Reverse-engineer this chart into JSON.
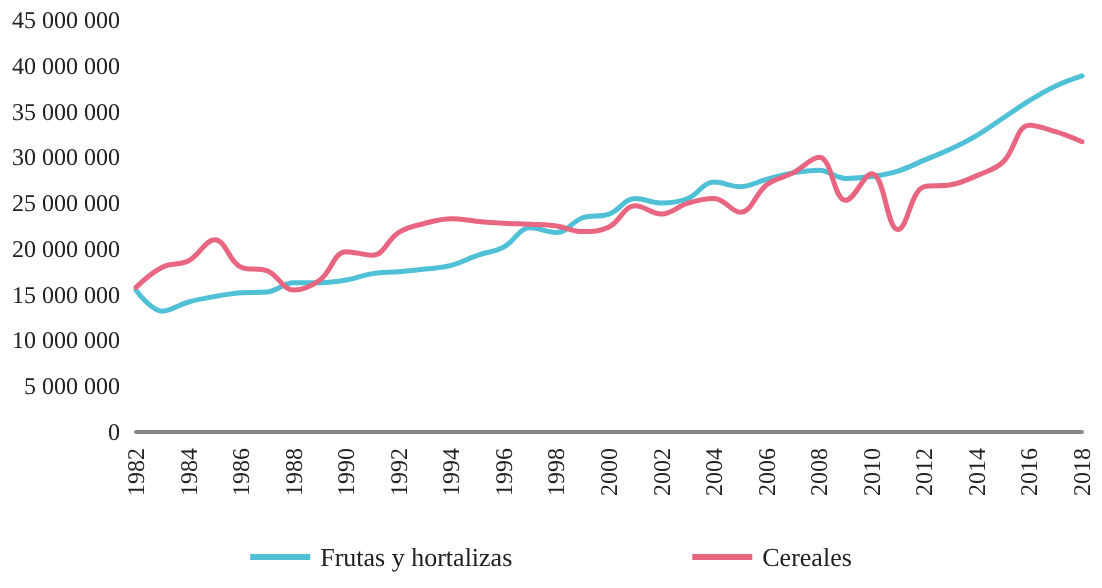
{
  "chart_data": {
    "type": "line",
    "x": [
      1982,
      1983,
      1984,
      1985,
      1986,
      1987,
      1988,
      1989,
      1990,
      1991,
      1992,
      1993,
      1994,
      1995,
      1996,
      1997,
      1998,
      1999,
      2000,
      2001,
      2002,
      2003,
      2004,
      2005,
      2006,
      2007,
      2008,
      2009,
      2010,
      2011,
      2012,
      2013,
      2014,
      2015,
      2016,
      2017,
      2018
    ],
    "series": [
      {
        "name": "Frutas y hortalizas",
        "color": "#4fc0d6",
        "values": [
          15500000,
          13200000,
          14200000,
          14800000,
          15200000,
          15300000,
          16300000,
          16300000,
          16600000,
          17300000,
          17500000,
          17800000,
          18200000,
          19300000,
          20200000,
          22300000,
          21800000,
          23400000,
          23800000,
          25500000,
          25000000,
          25500000,
          27300000,
          26800000,
          27600000,
          28300000,
          28600000,
          27700000,
          27900000,
          28500000,
          29700000,
          30900000,
          32400000,
          34300000,
          36200000,
          37800000,
          38900000
        ]
      },
      {
        "name": "Cereales",
        "color": "#e8667f",
        "values": [
          15800000,
          18000000,
          18700000,
          21000000,
          18000000,
          17600000,
          15500000,
          16600000,
          19700000,
          19300000,
          21800000,
          22800000,
          23300000,
          23000000,
          22800000,
          22700000,
          22500000,
          21900000,
          22400000,
          24700000,
          23800000,
          25000000,
          25500000,
          24000000,
          27000000,
          28300000,
          30000000,
          25300000,
          28200000,
          22100000,
          26800000,
          27000000,
          28000000,
          29500000,
          33500000,
          32800000,
          31700000
        ]
      }
    ],
    "xlim": [
      1982,
      2018
    ],
    "xticks": [
      1982,
      1984,
      1986,
      1988,
      1990,
      1992,
      1994,
      1996,
      1998,
      2000,
      2002,
      2004,
      2006,
      2008,
      2010,
      2012,
      2014,
      2016,
      2018
    ],
    "ylim": [
      0,
      45000000
    ],
    "yticks": [
      0,
      {
        "value": 5000000,
        "label": "5 000 000"
      },
      {
        "value": 10000000,
        "label": "10 000 000"
      },
      {
        "value": 15000000,
        "label": "15 000 000"
      },
      {
        "value": 20000000,
        "label": "20 000 000"
      },
      {
        "value": 25000000,
        "label": "25 000 000"
      },
      {
        "value": 30000000,
        "label": "30 000 000"
      },
      {
        "value": 35000000,
        "label": "35 000 000"
      },
      {
        "value": 40000000,
        "label": "40 000 000"
      },
      {
        "value": 45000000,
        "label": "45 000 000"
      }
    ],
    "grid": false,
    "legend": "bottom",
    "marker": "none",
    "line_style": "solid"
  }
}
